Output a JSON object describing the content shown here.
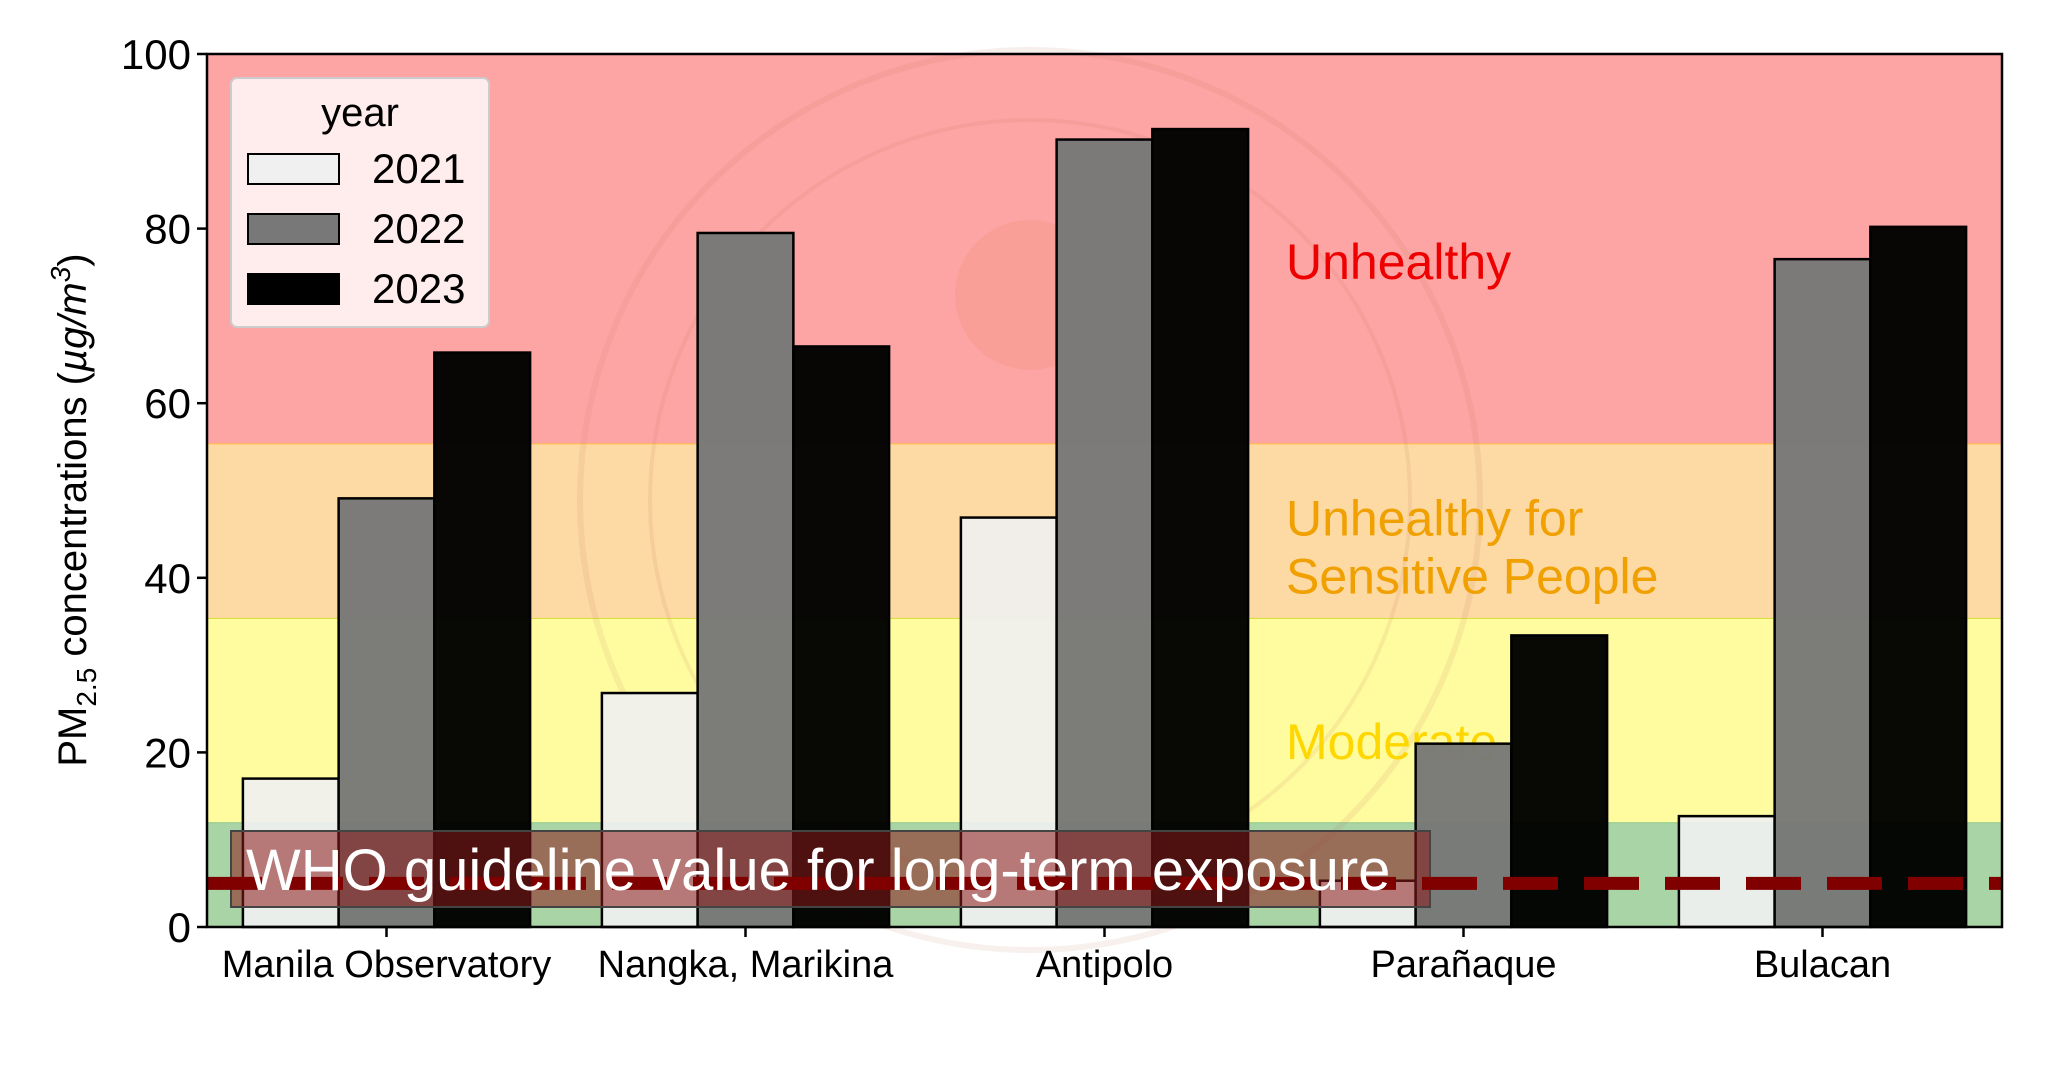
{
  "chart_data": {
    "type": "bar",
    "title": "",
    "xlabel": "",
    "ylabel": "PM2.5 concentrations (µg/m3)",
    "ylabel_parts": {
      "main": "PM",
      "sub": "2.5",
      "rest": " concentrations (",
      "unit": "µg/m",
      "sup": "3",
      "close": ")"
    },
    "ylim": [
      0,
      100
    ],
    "yticks": [
      "0",
      "20",
      "40",
      "60",
      "80",
      "100"
    ],
    "grid": false,
    "categories": [
      "Manila Observatory",
      "Nangka, Marikina",
      "Antipolo",
      "Parañaque",
      "Bulacan"
    ],
    "series": [
      {
        "name": "2021",
        "color": "#f0f0f0",
        "values": [
          17.0,
          26.8,
          46.9,
          5.3,
          12.7
        ]
      },
      {
        "name": "2022",
        "color": "#787878",
        "values": [
          49.1,
          79.5,
          90.2,
          21.0,
          76.5
        ]
      },
      {
        "name": "2023",
        "color": "#000000",
        "values": [
          65.8,
          66.5,
          91.4,
          33.4,
          80.2
        ]
      }
    ],
    "legend": {
      "title": "year",
      "placement": "top-left"
    },
    "bands": [
      {
        "from": 0,
        "to": 12,
        "color": "#a9d4a6",
        "label": ""
      },
      {
        "from": 12,
        "to": 35.4,
        "color": "#fffb9f",
        "label": "Moderate",
        "label_color": "#ffd700"
      },
      {
        "from": 35.4,
        "to": 55.4,
        "color": "#fdd9a3",
        "label": "Unhealthy for Sensitive People",
        "label_lines": [
          "Unhealthy for",
          "Sensitive People"
        ],
        "label_color": "#f0a000"
      },
      {
        "from": 55.4,
        "to": 100,
        "color": "#fda4a4",
        "label": "Unhealthy",
        "label_color": "#ee0000"
      }
    ],
    "reference_line": {
      "value": 5,
      "color": "#800000",
      "style": "dashed",
      "label": "WHO guideline value for long-term exposure"
    }
  },
  "watermark": {
    "text": "LUMEN DE LUMINE",
    "center": "IHS"
  }
}
